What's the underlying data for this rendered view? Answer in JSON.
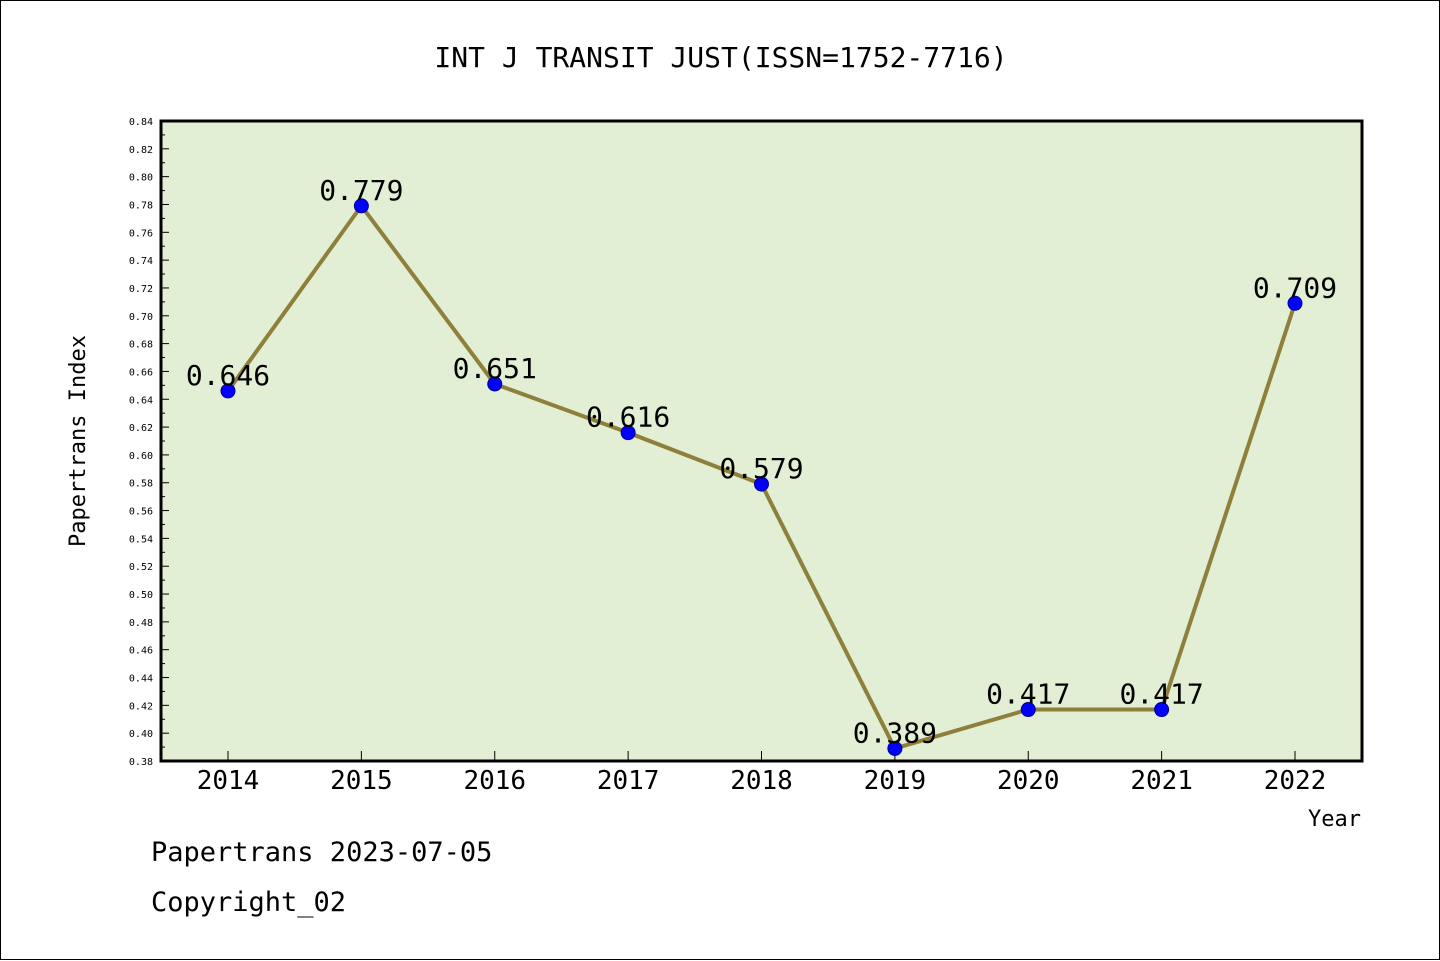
{
  "chart_data": {
    "type": "line",
    "title": "INT J TRANSIT JUST(ISSN=1752-7716)",
    "xlabel": "Year",
    "ylabel": "Papertrans Index",
    "categories": [
      "2014",
      "2015",
      "2016",
      "2017",
      "2018",
      "2019",
      "2020",
      "2021",
      "2022"
    ],
    "series": [
      {
        "values": [
          0.646,
          0.779,
          0.651,
          0.616,
          0.579,
          0.389,
          0.417,
          0.417,
          0.709
        ],
        "labels": [
          "0.646",
          "0.779",
          "0.651",
          "0.616",
          "0.579",
          "0.389",
          "0.417",
          "0.417",
          "0.709"
        ]
      }
    ],
    "ylim": [
      0.38,
      0.84
    ],
    "yticks": [
      "0.38",
      "0.40",
      "0.42",
      "0.44",
      "0.46",
      "0.48",
      "0.50",
      "0.52",
      "0.54",
      "0.56",
      "0.58",
      "0.60",
      "0.62",
      "0.64",
      "0.66",
      "0.68",
      "0.70",
      "0.72",
      "0.74",
      "0.76",
      "0.78",
      "0.80",
      "0.82",
      "0.84"
    ],
    "grid": false,
    "colors": {
      "plot_background": "#e2efd4",
      "line": "#8e7f3a",
      "marker": "#0000ff"
    }
  },
  "footer": {
    "date_line": "Papertrans 2023-07-05",
    "copyright": "Copyright_02"
  }
}
